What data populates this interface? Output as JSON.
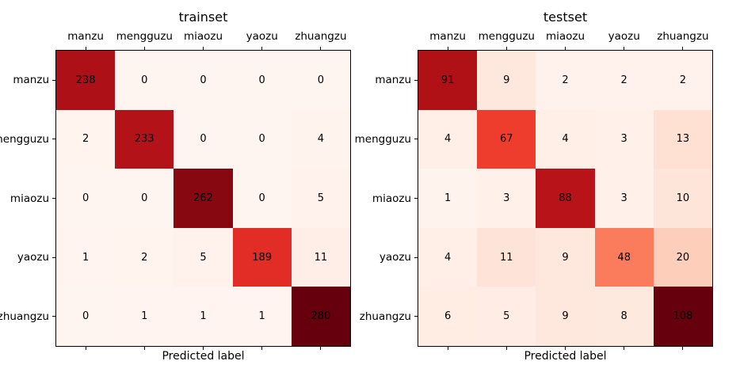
{
  "figure": {
    "background_color": "#ffffff",
    "text_color": "#000000",
    "colormap_name": "Reds",
    "reds_colormap_stops": [
      "#fff5f0",
      "#fee0d2",
      "#fcbba1",
      "#fc9272",
      "#fb6a4a",
      "#ef3b2c",
      "#cb181d",
      "#a50f15",
      "#67000d"
    ]
  },
  "chart_data": [
    {
      "type": "heatmap",
      "title": "trainset",
      "xlabel": "Predicted label",
      "x_tick_labels": [
        "manzu",
        "mengguzu",
        "miaozu",
        "yaozu",
        "zhuangzu"
      ],
      "y_tick_labels": [
        "manzu",
        "mengguzu",
        "miaozu",
        "yaozu",
        "zhuangzu"
      ],
      "rows": [
        [
          238,
          0,
          0,
          0,
          0
        ],
        [
          2,
          233,
          0,
          0,
          4
        ],
        [
          0,
          0,
          262,
          0,
          5
        ],
        [
          1,
          2,
          5,
          189,
          11
        ],
        [
          0,
          1,
          1,
          1,
          280
        ]
      ],
      "vmin": 0,
      "vmax": 280,
      "annotation_color": "#000000",
      "legend": "none",
      "grid": false
    },
    {
      "type": "heatmap",
      "title": "testset",
      "xlabel": "Predicted label",
      "x_tick_labels": [
        "manzu",
        "mengguzu",
        "miaozu",
        "yaozu",
        "zhuangzu"
      ],
      "y_tick_labels": [
        "manzu",
        "mengguzu",
        "miaozu",
        "yaozu",
        "zhuangzu"
      ],
      "rows": [
        [
          91,
          9,
          2,
          2,
          2
        ],
        [
          4,
          67,
          4,
          3,
          13
        ],
        [
          1,
          3,
          88,
          3,
          10
        ],
        [
          4,
          11,
          9,
          48,
          20
        ],
        [
          6,
          5,
          9,
          8,
          108
        ]
      ],
      "vmin": 0,
      "vmax": 108,
      "annotation_color": "#000000",
      "legend": "none",
      "grid": false
    }
  ]
}
